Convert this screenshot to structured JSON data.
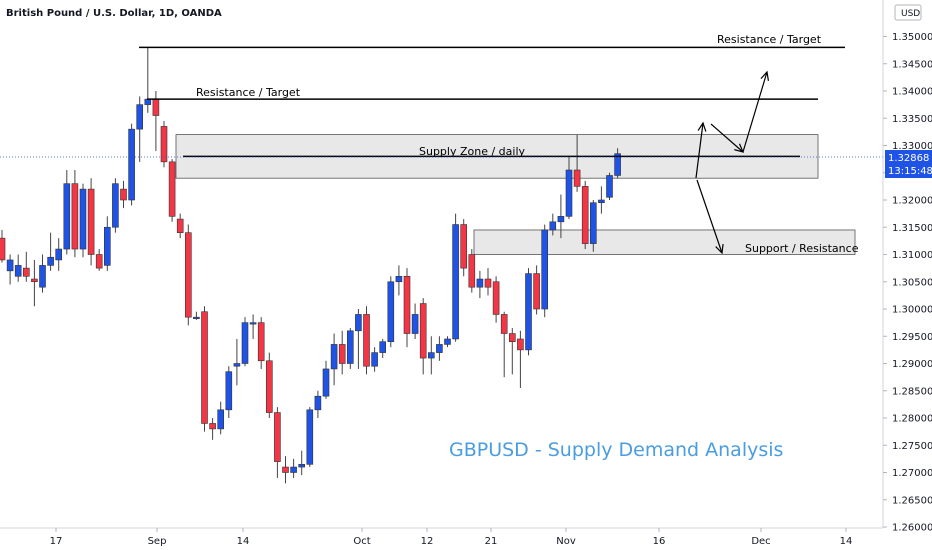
{
  "chart_data": {
    "type": "candlestick",
    "title": "British Pound / U.S. Dollar, 1D, OANDA",
    "overlay_title": "GBPUSD - Supply Demand Analysis",
    "currency": "USD",
    "price_label": "1.32868",
    "timer_label": "13:15:48",
    "y_ticks": [
      "1.35000",
      "1.34500",
      "1.34000",
      "1.33500",
      "1.33000",
      "1.32500",
      "1.32000",
      "1.31500",
      "1.31000",
      "1.30500",
      "1.30000",
      "1.29500",
      "1.29000",
      "1.28500",
      "1.28000",
      "1.27500",
      "1.27000",
      "1.26500",
      "1.26000"
    ],
    "x_ticks": [
      "17",
      "Sep",
      "14",
      "Oct",
      "12",
      "21",
      "Nov",
      "16",
      "Dec",
      "14"
    ],
    "ylim": [
      1.26,
      1.3533
    ],
    "colors": {
      "up": "#1e53e5",
      "down": "#f23645",
      "line": "#000000",
      "zone_fill": "#e0e0e0",
      "badge": "#1e53e5",
      "title_color": "#4a9de0"
    },
    "candles": [
      {
        "o": 1.313,
        "h": 1.3145,
        "l": 1.3085,
        "c": 1.309
      },
      {
        "o": 1.307,
        "h": 1.31,
        "l": 1.3045,
        "c": 1.309
      },
      {
        "o": 1.306,
        "h": 1.31,
        "l": 1.305,
        "c": 1.308
      },
      {
        "o": 1.3075,
        "h": 1.3105,
        "l": 1.305,
        "c": 1.306
      },
      {
        "o": 1.3055,
        "h": 1.309,
        "l": 1.3005,
        "c": 1.305
      },
      {
        "o": 1.304,
        "h": 1.31,
        "l": 1.303,
        "c": 1.308
      },
      {
        "o": 1.308,
        "h": 1.314,
        "l": 1.307,
        "c": 1.3095
      },
      {
        "o": 1.309,
        "h": 1.313,
        "l": 1.307,
        "c": 1.311
      },
      {
        "o": 1.311,
        "h": 1.3255,
        "l": 1.31,
        "c": 1.323
      },
      {
        "o": 1.323,
        "h": 1.3255,
        "l": 1.3095,
        "c": 1.311
      },
      {
        "o": 1.311,
        "h": 1.323,
        "l": 1.3095,
        "c": 1.322
      },
      {
        "o": 1.322,
        "h": 1.324,
        "l": 1.308,
        "c": 1.31
      },
      {
        "o": 1.31,
        "h": 1.311,
        "l": 1.307,
        "c": 1.3075
      },
      {
        "o": 1.308,
        "h": 1.317,
        "l": 1.307,
        "c": 1.315
      },
      {
        "o": 1.315,
        "h": 1.324,
        "l": 1.314,
        "c": 1.323
      },
      {
        "o": 1.322,
        "h": 1.3235,
        "l": 1.3185,
        "c": 1.32
      },
      {
        "o": 1.32,
        "h": 1.334,
        "l": 1.319,
        "c": 1.333
      },
      {
        "o": 1.333,
        "h": 1.339,
        "l": 1.327,
        "c": 1.3375
      },
      {
        "o": 1.3375,
        "h": 1.348,
        "l": 1.336,
        "c": 1.3385
      },
      {
        "o": 1.3385,
        "h": 1.34,
        "l": 1.329,
        "c": 1.3355
      },
      {
        "o": 1.3335,
        "h": 1.3345,
        "l": 1.326,
        "c": 1.327
      },
      {
        "o": 1.327,
        "h": 1.3275,
        "l": 1.316,
        "c": 1.317
      },
      {
        "o": 1.3165,
        "h": 1.3175,
        "l": 1.313,
        "c": 1.314
      },
      {
        "o": 1.314,
        "h": 1.3155,
        "l": 1.297,
        "c": 1.2985
      },
      {
        "o": 1.2985,
        "h": 1.2995,
        "l": 1.298,
        "c": 1.2985
      },
      {
        "o": 1.2995,
        "h": 1.3005,
        "l": 1.2775,
        "c": 1.279
      },
      {
        "o": 1.279,
        "h": 1.28,
        "l": 1.276,
        "c": 1.278
      },
      {
        "o": 1.278,
        "h": 1.283,
        "l": 1.277,
        "c": 1.2815
      },
      {
        "o": 1.2815,
        "h": 1.2895,
        "l": 1.28,
        "c": 1.2885
      },
      {
        "o": 1.2895,
        "h": 1.2945,
        "l": 1.286,
        "c": 1.29
      },
      {
        "o": 1.29,
        "h": 1.2985,
        "l": 1.2895,
        "c": 1.2975
      },
      {
        "o": 1.2975,
        "h": 1.299,
        "l": 1.2945,
        "c": 1.2975
      },
      {
        "o": 1.2975,
        "h": 1.2985,
        "l": 1.289,
        "c": 1.2905
      },
      {
        "o": 1.2905,
        "h": 1.292,
        "l": 1.28,
        "c": 1.281
      },
      {
        "o": 1.281,
        "h": 1.282,
        "l": 1.269,
        "c": 1.272
      },
      {
        "o": 1.271,
        "h": 1.273,
        "l": 1.268,
        "c": 1.27
      },
      {
        "o": 1.27,
        "h": 1.2725,
        "l": 1.269,
        "c": 1.271
      },
      {
        "o": 1.271,
        "h": 1.274,
        "l": 1.2695,
        "c": 1.2715
      },
      {
        "o": 1.2715,
        "h": 1.282,
        "l": 1.271,
        "c": 1.2815
      },
      {
        "o": 1.2815,
        "h": 1.285,
        "l": 1.28,
        "c": 1.284
      },
      {
        "o": 1.284,
        "h": 1.2905,
        "l": 1.2835,
        "c": 1.289
      },
      {
        "o": 1.289,
        "h": 1.2955,
        "l": 1.286,
        "c": 1.2935
      },
      {
        "o": 1.2935,
        "h": 1.296,
        "l": 1.288,
        "c": 1.29
      },
      {
        "o": 1.29,
        "h": 1.2965,
        "l": 1.289,
        "c": 1.296
      },
      {
        "o": 1.296,
        "h": 1.3,
        "l": 1.289,
        "c": 1.299
      },
      {
        "o": 1.299,
        "h": 1.3005,
        "l": 1.288,
        "c": 1.2895
      },
      {
        "o": 1.2895,
        "h": 1.293,
        "l": 1.2885,
        "c": 1.292
      },
      {
        "o": 1.292,
        "h": 1.2945,
        "l": 1.291,
        "c": 1.294
      },
      {
        "o": 1.294,
        "h": 1.306,
        "l": 1.293,
        "c": 1.305
      },
      {
        "o": 1.305,
        "h": 1.308,
        "l": 1.3025,
        "c": 1.306
      },
      {
        "o": 1.306,
        "h": 1.3075,
        "l": 1.293,
        "c": 1.2955
      },
      {
        "o": 1.2955,
        "h": 1.301,
        "l": 1.2945,
        "c": 1.299
      },
      {
        "o": 1.301,
        "h": 1.302,
        "l": 1.288,
        "c": 1.291
      },
      {
        "o": 1.291,
        "h": 1.295,
        "l": 1.288,
        "c": 1.292
      },
      {
        "o": 1.292,
        "h": 1.295,
        "l": 1.2905,
        "c": 1.2935
      },
      {
        "o": 1.2935,
        "h": 1.295,
        "l": 1.293,
        "c": 1.2945
      },
      {
        "o": 1.2945,
        "h": 1.3175,
        "l": 1.294,
        "c": 1.3155
      },
      {
        "o": 1.3155,
        "h": 1.3165,
        "l": 1.306,
        "c": 1.3075
      },
      {
        "o": 1.31,
        "h": 1.311,
        "l": 1.303,
        "c": 1.304
      },
      {
        "o": 1.304,
        "h": 1.307,
        "l": 1.302,
        "c": 1.3055
      },
      {
        "o": 1.3055,
        "h": 1.3075,
        "l": 1.3025,
        "c": 1.304
      },
      {
        "o": 1.305,
        "h": 1.306,
        "l": 1.2975,
        "c": 1.299
      },
      {
        "o": 1.299,
        "h": 1.2995,
        "l": 1.2875,
        "c": 1.2955
      },
      {
        "o": 1.2955,
        "h": 1.2965,
        "l": 1.288,
        "c": 1.294
      },
      {
        "o": 1.2945,
        "h": 1.296,
        "l": 1.2855,
        "c": 1.2925
      },
      {
        "o": 1.2925,
        "h": 1.3075,
        "l": 1.2915,
        "c": 1.3065
      },
      {
        "o": 1.3065,
        "h": 1.308,
        "l": 1.299,
        "c": 1.3
      },
      {
        "o": 1.3,
        "h": 1.3155,
        "l": 1.2985,
        "c": 1.3145
      },
      {
        "o": 1.3145,
        "h": 1.3175,
        "l": 1.3135,
        "c": 1.316
      },
      {
        "o": 1.316,
        "h": 1.321,
        "l": 1.313,
        "c": 1.317
      },
      {
        "o": 1.317,
        "h": 1.328,
        "l": 1.3165,
        "c": 1.3255
      },
      {
        "o": 1.3255,
        "h": 1.332,
        "l": 1.3215,
        "c": 1.3225
      },
      {
        "o": 1.3225,
        "h": 1.3235,
        "l": 1.311,
        "c": 1.312
      },
      {
        "o": 1.312,
        "h": 1.32,
        "l": 1.3105,
        "c": 1.3195
      },
      {
        "o": 1.3195,
        "h": 1.3225,
        "l": 1.3175,
        "c": 1.32
      },
      {
        "o": 1.3205,
        "h": 1.325,
        "l": 1.32,
        "c": 1.3245
      },
      {
        "o": 1.3245,
        "h": 1.3295,
        "l": 1.324,
        "c": 1.3285
      }
    ],
    "annotations": {
      "resistance_upper_label": "Resistance / Target",
      "resistance_lower_label": "Resistance / Target",
      "supply_zone_label": "Supply Zone / daily",
      "support_label": "Support / Resistance"
    },
    "levels": {
      "resistance_upper": 1.348,
      "resistance_lower": 1.3385,
      "supply_zone_line": 1.328,
      "supply_zone": [
        1.324,
        1.332
      ],
      "support_zone": [
        1.31,
        1.3145
      ]
    }
  }
}
